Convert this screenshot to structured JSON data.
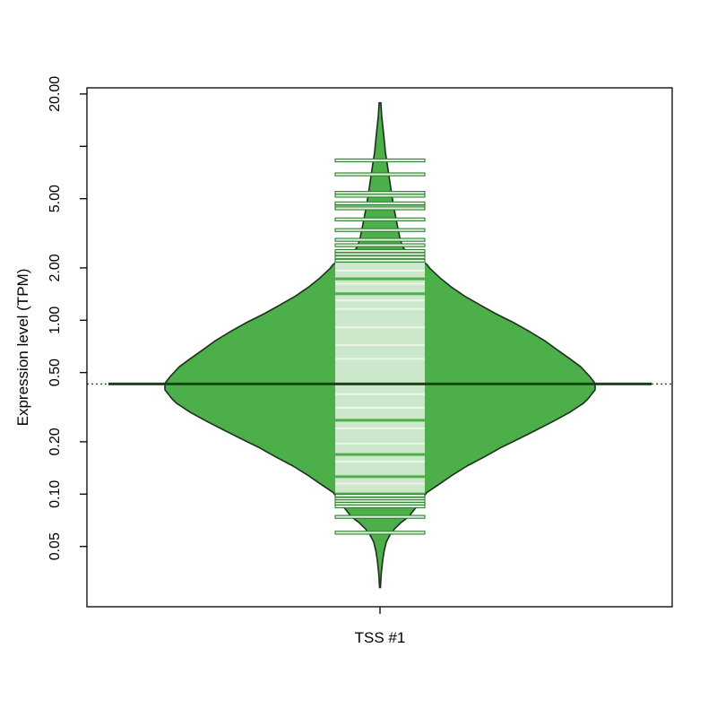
{
  "page": {
    "background": "#ffffff"
  },
  "chart_data": {
    "type": "violin",
    "variant": "beanplot-single",
    "title": "",
    "categories": [
      "TSS #1"
    ],
    "xlabel": "",
    "ylabel": "Expression level (TPM)",
    "y_scale": "log10",
    "y_range": [
      0.0225,
      21.7
    ],
    "grid": false,
    "legend": false,
    "y_ticks": [
      {
        "value": 20.0,
        "label": "20.00"
      },
      {
        "value": 10.0,
        "label": ""
      },
      {
        "value": 5.0,
        "label": "5.00"
      },
      {
        "value": 2.0,
        "label": "2.00"
      },
      {
        "value": 1.0,
        "label": "1.00"
      },
      {
        "value": 0.5,
        "label": "0.50"
      },
      {
        "value": 0.2,
        "label": "0.20"
      },
      {
        "value": 0.1,
        "label": "0.10"
      },
      {
        "value": 0.05,
        "label": "0.05"
      }
    ],
    "median_tpm": 0.43,
    "density_max_tpm": 17.8,
    "density_min_tpm": 0.029,
    "violin_profile": [
      {
        "tpm": 17.8,
        "w": 0.004
      },
      {
        "tpm": 14.9,
        "w": 0.008
      },
      {
        "tpm": 11.7,
        "w": 0.017
      },
      {
        "tpm": 9.25,
        "w": 0.025
      },
      {
        "tpm": 7.29,
        "w": 0.038
      },
      {
        "tpm": 5.75,
        "w": 0.05
      },
      {
        "tpm": 4.54,
        "w": 0.063
      },
      {
        "tpm": 3.58,
        "w": 0.079
      },
      {
        "tpm": 2.99,
        "w": 0.092
      },
      {
        "tpm": 2.66,
        "w": 0.104
      },
      {
        "tpm": 2.45,
        "w": 0.125
      },
      {
        "tpm": 2.28,
        "w": 0.167
      },
      {
        "tpm": 2.1,
        "w": 0.217
      },
      {
        "tpm": 1.98,
        "w": 0.233
      },
      {
        "tpm": 1.75,
        "w": 0.279
      },
      {
        "tpm": 1.56,
        "w": 0.329
      },
      {
        "tpm": 1.38,
        "w": 0.392
      },
      {
        "tpm": 1.23,
        "w": 0.463
      },
      {
        "tpm": 1.09,
        "w": 0.538
      },
      {
        "tpm": 0.97,
        "w": 0.621
      },
      {
        "tpm": 0.86,
        "w": 0.696
      },
      {
        "tpm": 0.76,
        "w": 0.767
      },
      {
        "tpm": 0.68,
        "w": 0.821
      },
      {
        "tpm": 0.6,
        "w": 0.883
      },
      {
        "tpm": 0.54,
        "w": 0.933
      },
      {
        "tpm": 0.475,
        "w": 0.975
      },
      {
        "tpm": 0.433,
        "w": 1.0
      },
      {
        "tpm": 0.398,
        "w": 1.0
      },
      {
        "tpm": 0.353,
        "w": 0.967
      },
      {
        "tpm": 0.333,
        "w": 0.946
      },
      {
        "tpm": 0.296,
        "w": 0.883
      },
      {
        "tpm": 0.263,
        "w": 0.808
      },
      {
        "tpm": 0.233,
        "w": 0.725
      },
      {
        "tpm": 0.207,
        "w": 0.642
      },
      {
        "tpm": 0.184,
        "w": 0.558
      },
      {
        "tpm": 0.163,
        "w": 0.483
      },
      {
        "tpm": 0.145,
        "w": 0.404
      },
      {
        "tpm": 0.129,
        "w": 0.338
      },
      {
        "tpm": 0.114,
        "w": 0.275
      },
      {
        "tpm": 0.102,
        "w": 0.217
      },
      {
        "tpm": 0.09,
        "w": 0.188
      },
      {
        "tpm": 0.08,
        "w": 0.154
      },
      {
        "tpm": 0.074,
        "w": 0.133
      },
      {
        "tpm": 0.069,
        "w": 0.1
      },
      {
        "tpm": 0.063,
        "w": 0.067
      },
      {
        "tpm": 0.058,
        "w": 0.046
      },
      {
        "tpm": 0.053,
        "w": 0.029
      },
      {
        "tpm": 0.047,
        "w": 0.019
      },
      {
        "tpm": 0.042,
        "w": 0.013
      },
      {
        "tpm": 0.035,
        "w": 0.006
      },
      {
        "tpm": 0.029,
        "w": 0.002
      }
    ],
    "beanlines": {
      "above_band_tpm": [
        8.3,
        6.9,
        5.4,
        5.2,
        4.7,
        4.5,
        4.4,
        3.8,
        3.3,
        2.9,
        2.7,
        2.5,
        2.4,
        2.3,
        2.2
      ],
      "dense_band_tpm": [
        2.15,
        0.102
      ],
      "bright_stripes_tpm": [
        1.93,
        1.62,
        1.3,
        1.16,
        0.91,
        0.72,
        0.6,
        0.375,
        0.314,
        0.239,
        0.195,
        0.154,
        0.115
      ],
      "gap_stripes_tpm": [
        1.73,
        1.42,
        0.266,
        0.169,
        0.126
      ],
      "below_band_tpm": [
        0.098,
        0.094,
        0.091,
        0.088,
        0.085,
        0.074,
        0.06
      ]
    },
    "colors": {
      "violin_fill": "#4DAF4A",
      "violin_outline": "#1b301b",
      "beanline_edge": "#2f8132",
      "beanline_fill": "#ddefdb",
      "dense_band": "#cde7ca",
      "bright_stripe": "#e9f5e7",
      "gap_stripe": "#4DAF4A",
      "median_line": "#1c421c",
      "overall_dotted_line": "#2b4d2b",
      "axis": "#000000",
      "background": "#ffffff"
    }
  }
}
